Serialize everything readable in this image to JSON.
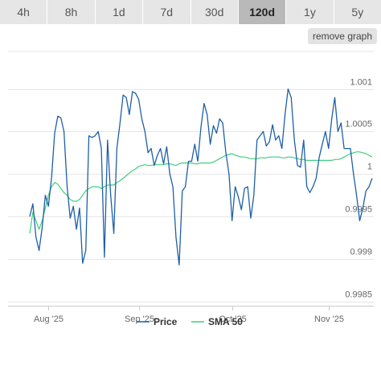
{
  "range_tabs": [
    {
      "label": "4h",
      "active": false
    },
    {
      "label": "8h",
      "active": false
    },
    {
      "label": "1d",
      "active": false
    },
    {
      "label": "7d",
      "active": false
    },
    {
      "label": "30d",
      "active": false
    },
    {
      "label": "120d",
      "active": true
    },
    {
      "label": "1y",
      "active": false
    },
    {
      "label": "5y",
      "active": false
    }
  ],
  "remove_graph_label": "remove graph",
  "colors": {
    "price": "#1f5fa6",
    "sma": "#3ecf7a",
    "grid": "#e6e6e6",
    "active_tab": "#b9b9b9",
    "tab": "#e6e6e6"
  },
  "chart_data": {
    "type": "line",
    "x_ticks": [
      {
        "label": "Aug '25",
        "index": 6
      },
      {
        "label": "Sep '25",
        "index": 35
      },
      {
        "label": "Oct '25",
        "index": 65
      },
      {
        "label": "Nov '25",
        "index": 96
      }
    ],
    "y_ticks": [
      {
        "label": "1.001",
        "value": 1.001
      },
      {
        "label": "1.0005",
        "value": 1.0005
      },
      {
        "label": "1",
        "value": 1.0
      },
      {
        "label": "0.9995",
        "value": 0.9995
      },
      {
        "label": "0.999",
        "value": 0.999
      },
      {
        "label": "0.9985",
        "value": 0.9985
      }
    ],
    "ylim": [
      0.99845,
      1.00148
    ],
    "grid": true,
    "legend_position": "bottom-center",
    "series": [
      {
        "name": "Price",
        "color": "#1f5fa6",
        "values": [
          0.9995,
          0.99965,
          0.99926,
          0.9991,
          0.99937,
          0.99975,
          0.99962,
          0.99995,
          1.00048,
          1.00068,
          1.00066,
          1.0005,
          0.99985,
          0.99948,
          0.99962,
          0.99935,
          0.9996,
          0.99895,
          0.9991,
          1.00045,
          1.00043,
          1.00045,
          1.0005,
          1.0003,
          0.99902,
          1.0004,
          0.99975,
          0.9993,
          1.0003,
          1.0006,
          1.00093,
          1.0009,
          1.0007,
          1.00097,
          1.00095,
          1.00088,
          1.00065,
          1.0005,
          1.00025,
          1.0003,
          1.0001,
          1.00022,
          1.0003,
          1.00012,
          1.00032,
          1.0,
          0.99985,
          0.99925,
          0.99893,
          0.9998,
          0.99985,
          1.00015,
          1.00015,
          1.00035,
          1.00015,
          1.00055,
          1.00083,
          1.0007,
          1.00035,
          1.00057,
          1.00048,
          1.00065,
          1.0006,
          1.00025,
          1.0,
          0.99945,
          0.99985,
          0.99973,
          0.99958,
          0.99983,
          0.99985,
          0.99948,
          0.99975,
          1.0004,
          1.00045,
          1.0005,
          1.00033,
          1.00038,
          1.00058,
          1.0004,
          1.00045,
          1.0003,
          1.0007,
          1.001,
          1.0009,
          1.0004,
          1.0001,
          1.00008,
          1.0004,
          0.99985,
          0.99978,
          0.99985,
          0.99995,
          1.0002,
          1.00035,
          1.0005,
          1.0003,
          1.00065,
          1.0009,
          1.0005,
          1.0006,
          1.0003,
          1.0003,
          1.0003,
          1.0,
          0.99975,
          0.99945,
          0.9996,
          0.9998,
          0.99985,
          0.99995
        ]
      },
      {
        "name": "SMA 50",
        "color": "#3ecf7a",
        "values": [
          0.9993,
          0.99955,
          0.99945,
          0.99935,
          0.99945,
          0.9996,
          0.99975,
          0.99985,
          0.9999,
          0.99988,
          0.99983,
          0.99978,
          0.99975,
          0.9997,
          0.99968,
          0.99968,
          0.9997,
          0.99975,
          0.9998,
          0.99983,
          0.99985,
          0.99985,
          0.99985,
          0.99983,
          0.99985,
          0.99987,
          0.99987,
          0.99987,
          0.9999,
          0.99992,
          0.99995,
          0.99998,
          1.00001,
          1.00004,
          1.00006,
          1.00009,
          1.0001,
          1.00011,
          1.0001,
          1.0001,
          1.00011,
          1.00011,
          1.00011,
          1.00011,
          1.00012,
          1.00012,
          1.00011,
          1.0001,
          1.00012,
          1.00013,
          1.00013,
          1.00013,
          1.00013,
          1.00012,
          1.00012,
          1.00013,
          1.00013,
          1.00013,
          1.00013,
          1.00014,
          1.00016,
          1.00018,
          1.0002,
          1.00022,
          1.00023,
          1.00024,
          1.00022,
          1.00021,
          1.0002,
          1.0002,
          1.00019,
          1.00018,
          1.00018,
          1.00018,
          1.00019,
          1.00019,
          1.00019,
          1.0002,
          1.0002,
          1.0002,
          1.0002,
          1.00019,
          1.00019,
          1.0002,
          1.0002,
          1.00019,
          1.00018,
          1.00017,
          1.00017,
          1.00016,
          1.00016,
          1.00016,
          1.00016,
          1.00016,
          1.00016,
          1.00016,
          1.00016,
          1.00016,
          1.00017,
          1.00017,
          1.00018,
          1.0002,
          1.00022,
          1.00024,
          1.00025,
          1.00026,
          1.00026,
          1.00025,
          1.00024,
          1.00022,
          1.0002
        ]
      }
    ]
  }
}
